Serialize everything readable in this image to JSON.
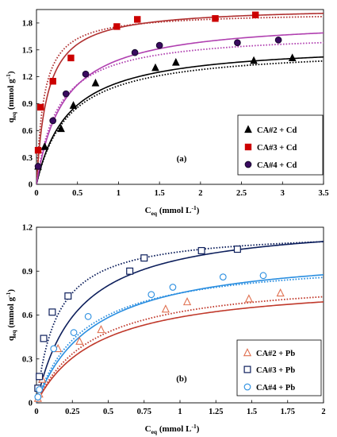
{
  "chart_data": [
    {
      "type": "scatter",
      "panel_label": "(a)",
      "ylabel": "q",
      "ylabel_sub": "eq",
      "ylabel_unit": " (mmol  g",
      "ylabel_sup": "-1",
      "ylabel_close": ")",
      "xlabel": "C",
      "xlabel_sub": "eq",
      "xlabel_unit": " (mmol L",
      "xlabel_sup": "-1",
      "xlabel_close": ")",
      "xlim": [
        0,
        3.5
      ],
      "ylim": [
        0,
        1.95
      ],
      "x_ticks": [
        0,
        0.5,
        1,
        1.5,
        2,
        2.5,
        3,
        3.5
      ],
      "x_tick_labels": [
        "0",
        "0.5",
        "1",
        "1.5",
        "2",
        "2.5",
        "3",
        "3.5"
      ],
      "y_ticks": [
        0,
        0.3,
        0.6,
        0.9,
        1.2,
        1.5,
        1.8
      ],
      "y_tick_labels": [
        "0",
        "0.3",
        "0.6",
        "0.9",
        "1.2",
        "1.5",
        "1.8"
      ],
      "legend_position": "center-right",
      "series": [
        {
          "name": "CA#2 + Cd",
          "marker": "triangle-filled",
          "color": "#000000",
          "points": [
            [
              0.02,
              0.2
            ],
            [
              0.1,
              0.42
            ],
            [
              0.3,
              0.62
            ],
            [
              0.45,
              0.88
            ],
            [
              0.72,
              1.13
            ],
            [
              1.45,
              1.3
            ],
            [
              1.7,
              1.36
            ],
            [
              2.65,
              1.38
            ],
            [
              3.12,
              1.41
            ]
          ],
          "fit_solid": {
            "qmax": 1.58,
            "k": 2.55
          },
          "fit_dotted": {
            "qmax": 1.53,
            "k": 2.55
          }
        },
        {
          "name": "CA#3 + Cd",
          "marker": "square-filled",
          "color": "#cc0000",
          "fit_color": "#b03030",
          "points": [
            [
              0.02,
              0.38
            ],
            [
              0.05,
              0.86
            ],
            [
              0.2,
              1.15
            ],
            [
              0.42,
              1.41
            ],
            [
              0.98,
              1.76
            ],
            [
              1.23,
              1.84
            ],
            [
              2.18,
              1.85
            ],
            [
              2.67,
              1.89
            ]
          ],
          "fit_solid": {
            "qmax": 1.98,
            "k": 7.5
          },
          "fit_dotted": {
            "qmax": 1.92,
            "k": 11
          }
        },
        {
          "name": "CA#4 + Cd",
          "marker": "circle-filled",
          "color": "#3a0a60",
          "fit_color": "#b040b0",
          "points": [
            [
              0.02,
              0.2
            ],
            [
              0.2,
              0.71
            ],
            [
              0.36,
              1.01
            ],
            [
              0.6,
              1.23
            ],
            [
              1.2,
              1.47
            ],
            [
              1.5,
              1.55
            ],
            [
              2.45,
              1.58
            ],
            [
              2.95,
              1.61
            ]
          ],
          "fit_solid": {
            "qmax": 1.85,
            "k": 3.0
          },
          "fit_dotted": {
            "qmax": 1.7,
            "k": 3.8
          }
        }
      ]
    },
    {
      "type": "scatter",
      "panel_label": "(b)",
      "ylabel": "q",
      "ylabel_sub": "eq",
      "ylabel_unit": " (mmol  g",
      "ylabel_sup": "-1",
      "ylabel_close": ")",
      "xlabel": "C",
      "xlabel_sub": "eq",
      "xlabel_unit": " (mmol L",
      "xlabel_sup": "-1",
      "xlabel_close": ")",
      "xlim": [
        0,
        2
      ],
      "ylim": [
        0,
        1.2
      ],
      "x_ticks": [
        0,
        0.25,
        0.5,
        0.75,
        1,
        1.25,
        1.5,
        1.75,
        2
      ],
      "x_tick_labels": [
        "0",
        "0.25",
        "0.5",
        "0.75",
        "1",
        "1.25",
        "1.5",
        "1.75",
        "2"
      ],
      "y_ticks": [
        0,
        0.3,
        0.6,
        0.9,
        1.2
      ],
      "y_tick_labels": [
        "0",
        "0.3",
        "0.6",
        "0.9",
        "1.2"
      ],
      "legend_position": "bottom-right",
      "series": [
        {
          "name": "CA#2 + Pb",
          "marker": "triangle-open",
          "color": "#e07050",
          "fit_color": "#c0392b",
          "points": [
            [
              0.01,
              0.03
            ],
            [
              0.02,
              0.06
            ],
            [
              0.04,
              0.16
            ],
            [
              0.15,
              0.37
            ],
            [
              0.3,
              0.42
            ],
            [
              0.45,
              0.5
            ],
            [
              0.9,
              0.64
            ],
            [
              1.05,
              0.69
            ],
            [
              1.48,
              0.71
            ],
            [
              1.7,
              0.75
            ]
          ],
          "fit_solid": {
            "qmax": 0.84,
            "k": 2.3
          },
          "fit_dotted": {
            "qmax": 0.87,
            "k": 2.5
          }
        },
        {
          "name": "CA#3 + Pb",
          "marker": "square-open",
          "color": "#0d1f5c",
          "points": [
            [
              0.01,
              0.1
            ],
            [
              0.02,
              0.18
            ],
            [
              0.05,
              0.44
            ],
            [
              0.11,
              0.62
            ],
            [
              0.22,
              0.73
            ],
            [
              0.65,
              0.9
            ],
            [
              0.75,
              0.99
            ],
            [
              1.15,
              1.04
            ],
            [
              1.4,
              1.05
            ]
          ],
          "fit_solid": {
            "qmax": 1.26,
            "k": 3.5
          },
          "fit_dotted": {
            "qmax": 1.18,
            "k": 7.0
          }
        },
        {
          "name": "CA#4 + Pb",
          "marker": "circle-open",
          "color": "#2a8ee0",
          "points": [
            [
              0.01,
              0.04
            ],
            [
              0.02,
              0.09
            ],
            [
              0.12,
              0.37
            ],
            [
              0.26,
              0.48
            ],
            [
              0.36,
              0.59
            ],
            [
              0.8,
              0.74
            ],
            [
              0.95,
              0.79
            ],
            [
              1.3,
              0.86
            ],
            [
              1.58,
              0.87
            ]
          ],
          "fit_solid": {
            "qmax": 1.05,
            "k": 2.5
          },
          "fit_dotted": {
            "qmax": 1.0,
            "k": 3.0
          }
        }
      ]
    }
  ]
}
